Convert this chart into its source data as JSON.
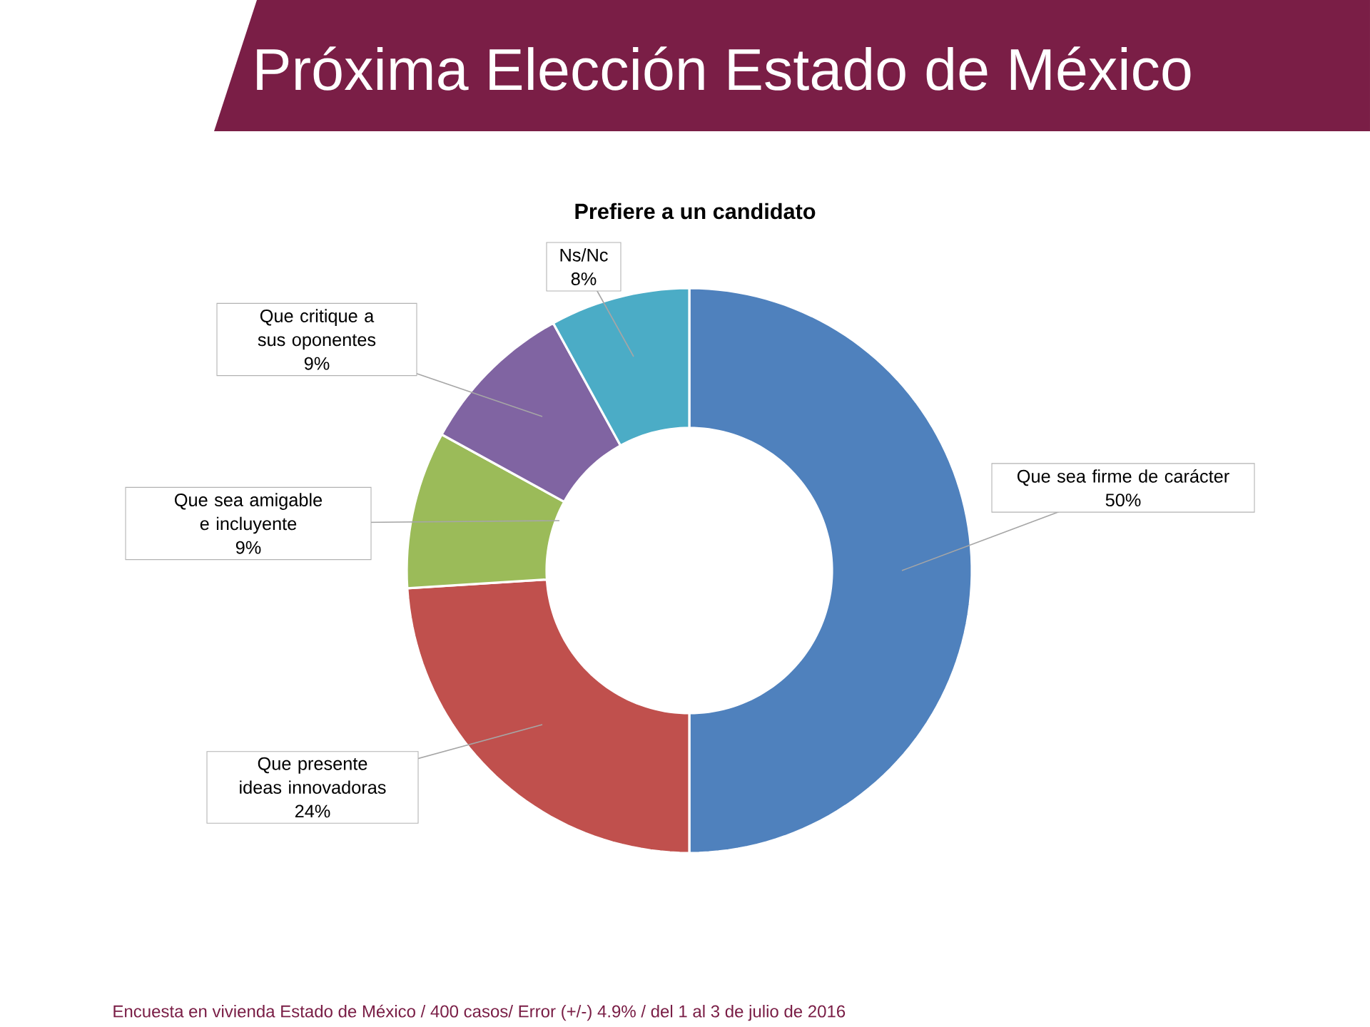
{
  "chart_data": {
    "type": "donut",
    "title": "Próxima Elección Estado de México",
    "subtitle": "Prefiere a un candidato",
    "categories": [
      "Que sea firme de carácter",
      "Que presente ideas innovadoras",
      "Que sea amigable e incluyente",
      "Que critique a sus oponentes",
      "Ns/Nc"
    ],
    "values": [
      50,
      24,
      9,
      9,
      8
    ],
    "value_labels": [
      "50%",
      "24%",
      "9%",
      "9%",
      "8%"
    ],
    "colors": [
      "#4f81bd",
      "#c0504d",
      "#9bbb59",
      "#8064a2",
      "#4bacc6"
    ],
    "annotations": [
      "Encuesta en vivienda Estado de México / 400 casos/ Error (+/-) 4.9%  / del 1 al 3 de julio de 2016"
    ]
  }
}
